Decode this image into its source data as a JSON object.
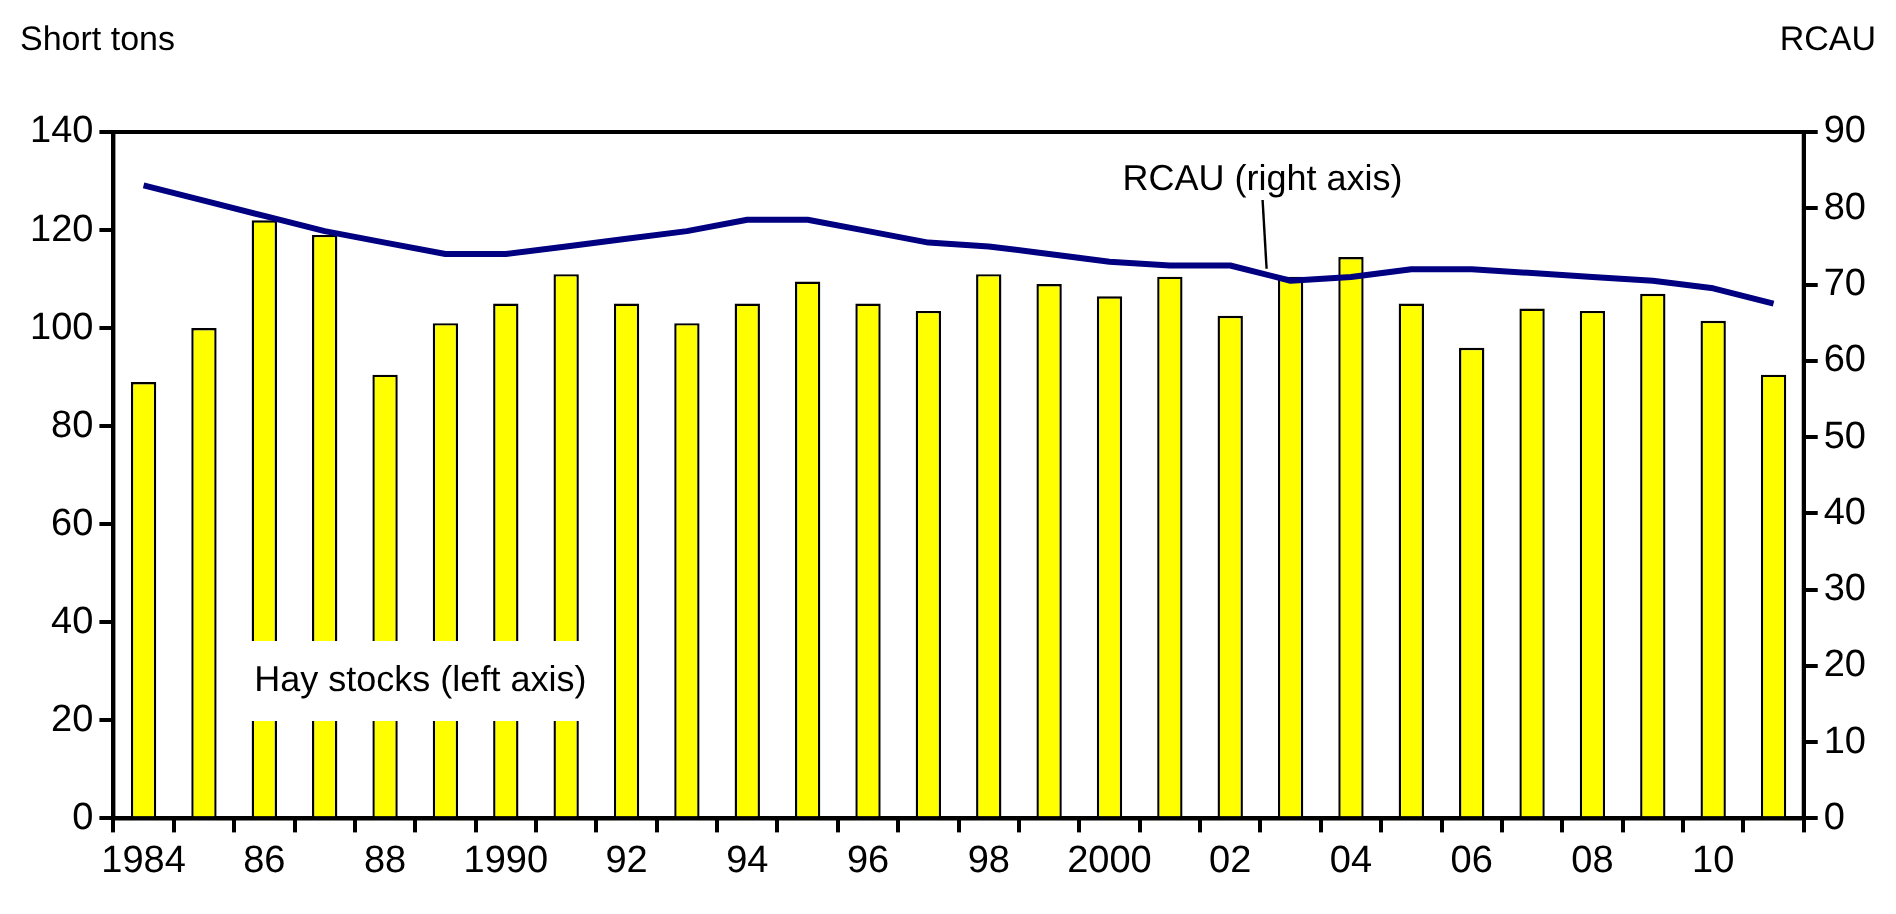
{
  "chart_data": {
    "type": "bar",
    "ylabel": "Short tons",
    "y2label": "RCAU",
    "categories": [
      "1984",
      null,
      "86",
      null,
      "88",
      null,
      "1990",
      null,
      "92",
      null,
      "94",
      null,
      "96",
      null,
      "98",
      null,
      "2000",
      null,
      "02",
      null,
      "04",
      null,
      "06",
      null,
      "08",
      null,
      "10",
      null
    ],
    "series": [
      {
        "name": "Hay stocks (left axis)",
        "color": "#ffff00",
        "values": [
          89,
          100,
          122,
          119,
          90.5,
          101,
          105,
          111,
          105,
          101,
          105,
          109.5,
          105,
          103.5,
          111,
          109,
          106.5,
          110.5,
          102.5,
          110.5,
          114.5,
          105,
          96,
          104,
          103.5,
          107,
          101.5,
          90.5
        ]
      },
      {
        "name": "RCAU (right axis)",
        "type": "line",
        "axis": "y2",
        "color": "#000080",
        "values": [
          83,
          81,
          79,
          77,
          75.5,
          74,
          74,
          75,
          76,
          77,
          78.5,
          78.5,
          77,
          75.5,
          75,
          74,
          73,
          72.5,
          72.5,
          70.5,
          71,
          72,
          72,
          71.5,
          71,
          70.5,
          69.5,
          67.5
        ]
      }
    ],
    "ylim": [
      0,
      140
    ],
    "yticks": [
      0,
      20,
      40,
      60,
      80,
      100,
      120,
      140
    ],
    "y2lim": [
      0,
      90
    ],
    "y2ticks": [
      0,
      10,
      20,
      30,
      40,
      50,
      60,
      70,
      80,
      90
    ],
    "grid": false,
    "legend": false,
    "marker": "none",
    "line_style": "solid"
  }
}
